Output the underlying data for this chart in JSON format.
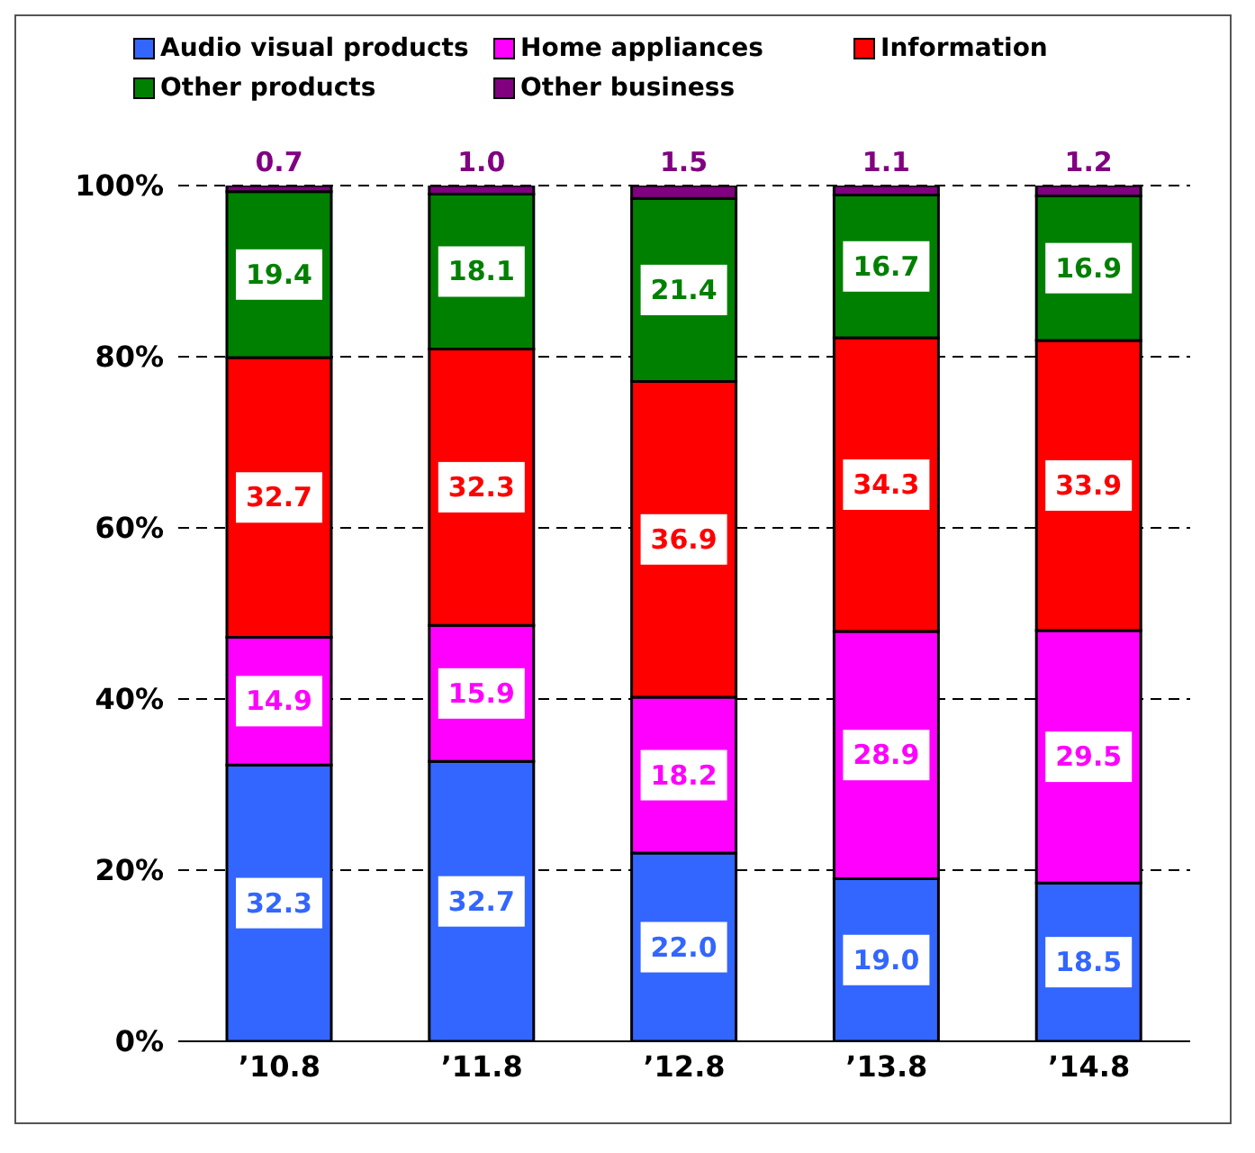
{
  "chart_data": {
    "type": "bar",
    "stacked": true,
    "categories": [
      "’10.8",
      "’11.8",
      "’12.8",
      "’13.8",
      "’14.8"
    ],
    "series": [
      {
        "name": "Audio visual products",
        "color": "#3366ff",
        "values": [
          32.3,
          32.7,
          22.0,
          19.0,
          18.5
        ],
        "value_labels": [
          "32.3",
          "32.7",
          "22.0",
          "19.0",
          "18.5"
        ]
      },
      {
        "name": "Home appliances",
        "color": "#ff00ff",
        "values": [
          14.9,
          15.9,
          18.2,
          28.9,
          29.5
        ],
        "value_labels": [
          "14.9",
          "15.9",
          "18.2",
          "28.9",
          "29.5"
        ]
      },
      {
        "name": "Information",
        "color": "#ff0000",
        "values": [
          32.7,
          32.3,
          36.9,
          34.3,
          33.9
        ],
        "value_labels": [
          "32.7",
          "32.3",
          "36.9",
          "34.3",
          "33.9"
        ]
      },
      {
        "name": "Other products",
        "color": "#008000",
        "values": [
          19.4,
          18.1,
          21.4,
          16.7,
          16.9
        ],
        "value_labels": [
          "19.4",
          "18.1",
          "21.4",
          "16.7",
          "16.9"
        ]
      },
      {
        "name": "Other business",
        "color": "#800080",
        "values": [
          0.7,
          1.0,
          1.5,
          1.1,
          1.2
        ],
        "value_labels": [
          "0.7",
          "1.0",
          "1.5",
          "1.1",
          "1.2"
        ]
      }
    ],
    "ylim": [
      0,
      100
    ],
    "yticks": [
      {
        "value": 0,
        "label": "0%"
      },
      {
        "value": 20,
        "label": "20%"
      },
      {
        "value": 40,
        "label": "40%"
      },
      {
        "value": 60,
        "label": "60%"
      },
      {
        "value": 80,
        "label": "80%"
      },
      {
        "value": 100,
        "label": "100%"
      }
    ],
    "grid": "y",
    "legend": "top"
  }
}
